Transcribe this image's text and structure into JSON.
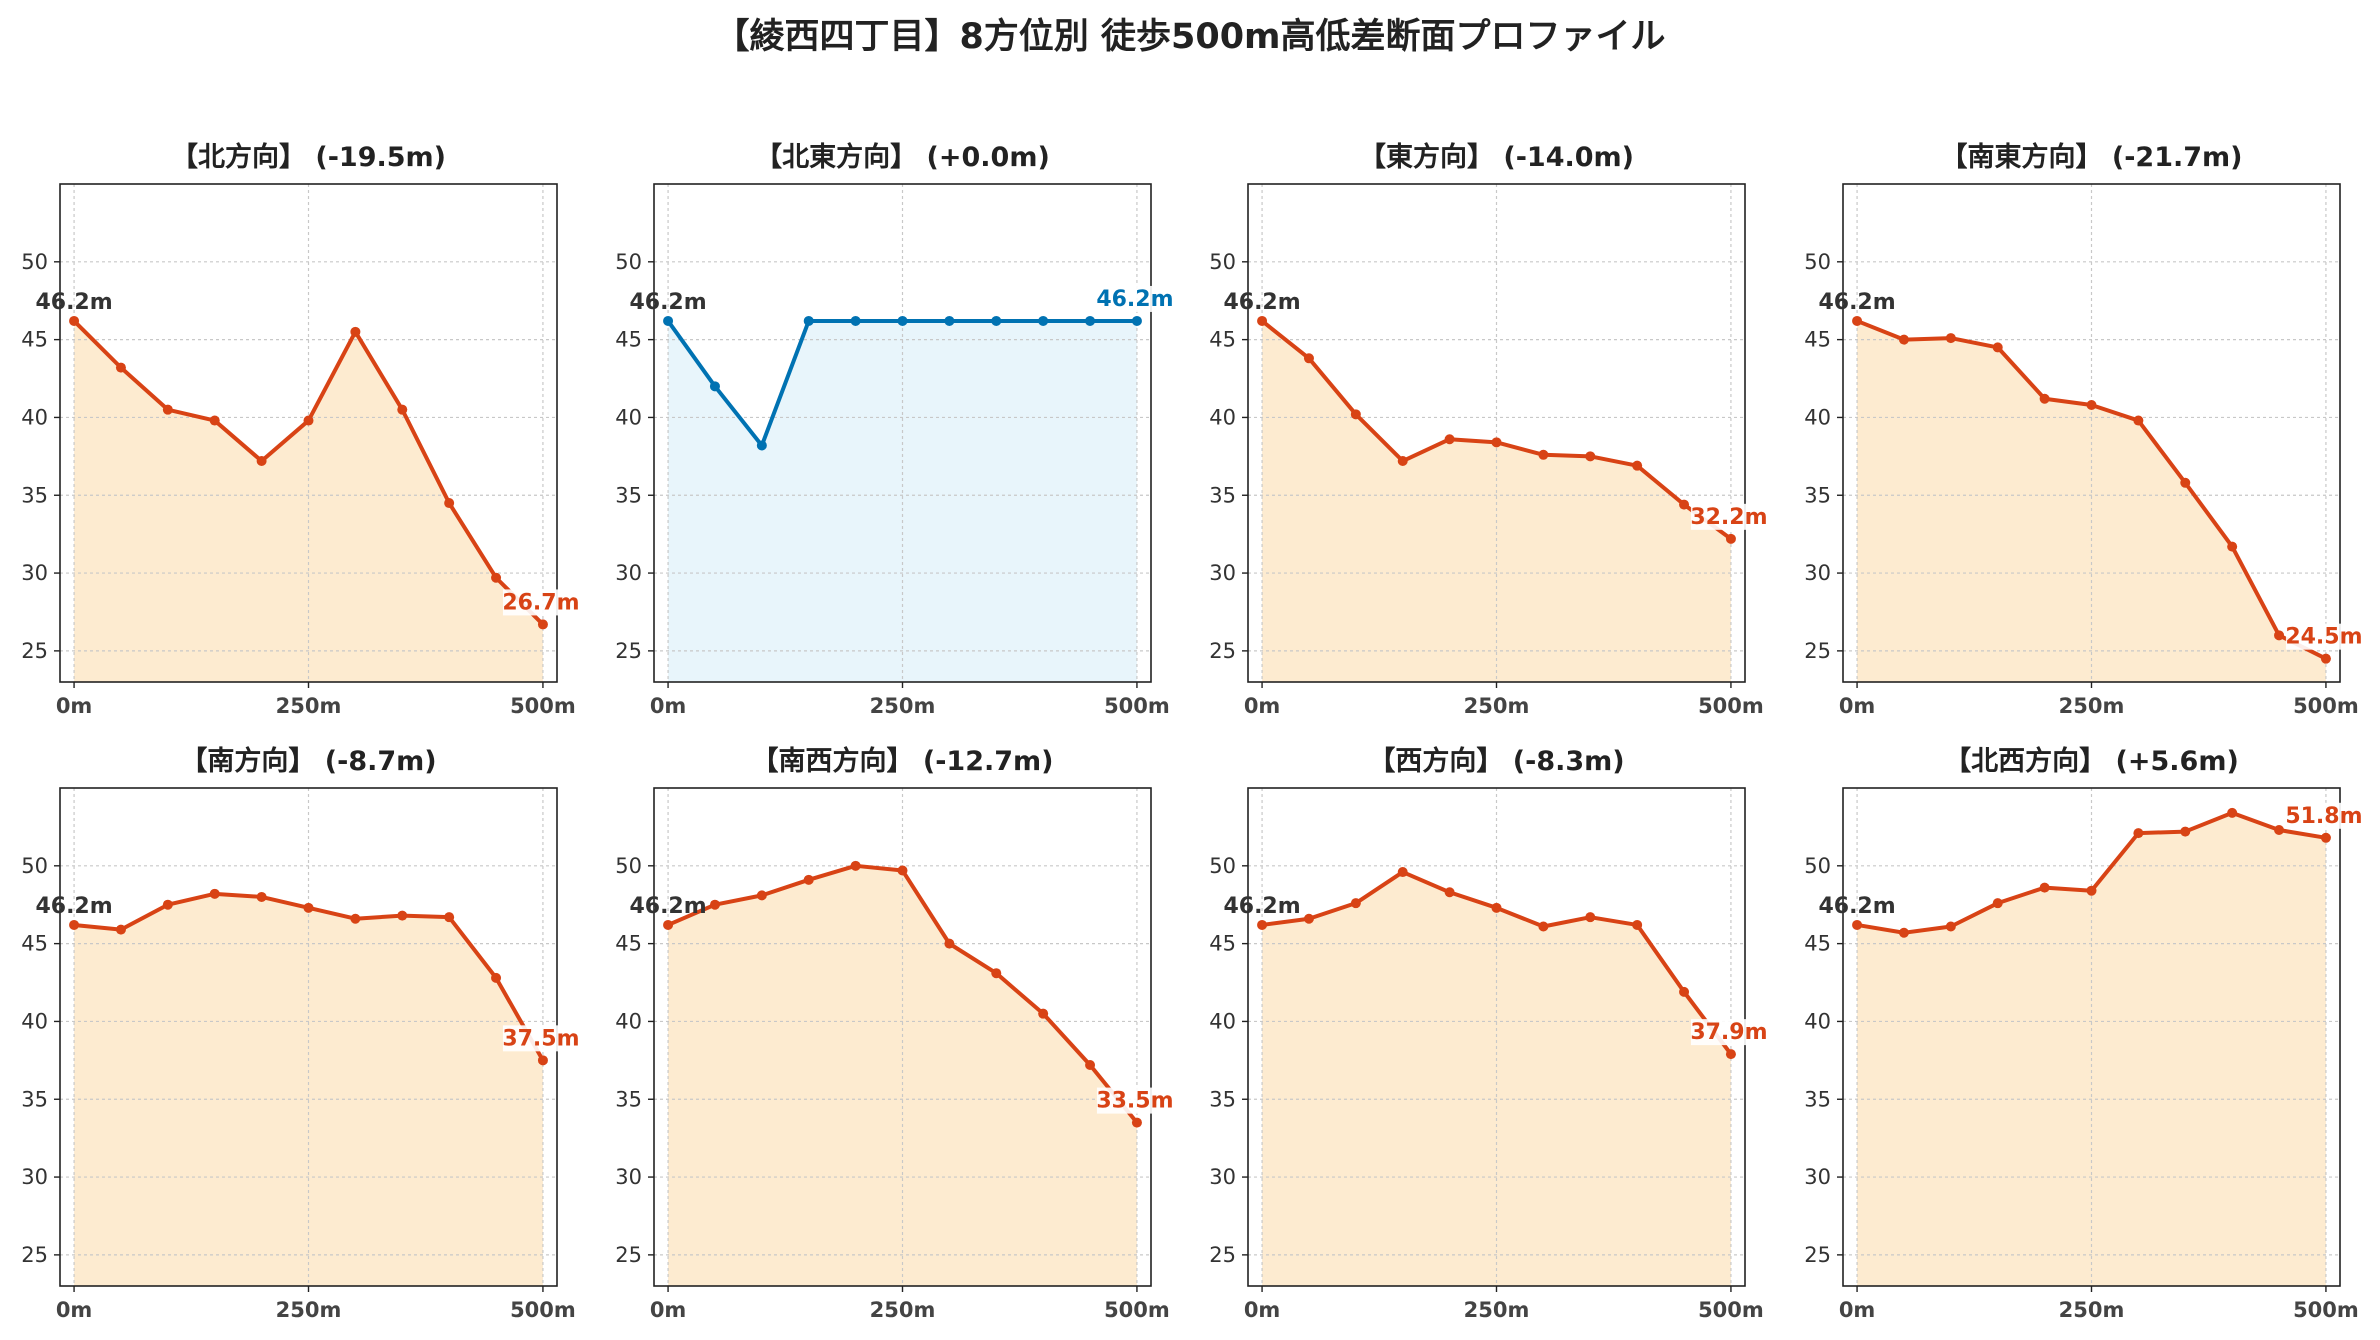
{
  "figure": {
    "title": "【綾西四丁目】8方位別 徒歩500m高低差断面プロファイル",
    "colors": {
      "down_line": "#d84315",
      "down_fill": "#fdebd0",
      "up_line": "#0072b2",
      "up_fill": "#e8f5fb",
      "start_label": "#333333"
    }
  },
  "chart_data": [
    {
      "type": "area",
      "title": "【北方向】 (-19.5m)",
      "x": [
        0,
        50,
        100,
        150,
        200,
        250,
        300,
        350,
        400,
        450,
        500
      ],
      "y": [
        46.2,
        43.2,
        40.5,
        39.8,
        37.2,
        39.8,
        45.5,
        40.5,
        34.5,
        29.7,
        26.7
      ],
      "ylim": [
        23,
        55
      ],
      "yticks": [
        25,
        30,
        35,
        40,
        45,
        50
      ],
      "xticks": [
        0,
        250,
        500
      ],
      "xticklabels": [
        "0m",
        "250m",
        "500m"
      ],
      "grid": true,
      "style": "down",
      "start_label": "46.2m",
      "end_label": "26.7m"
    },
    {
      "type": "area",
      "title": "【北東方向】 (+0.0m)",
      "x": [
        0,
        50,
        100,
        150,
        200,
        250,
        300,
        350,
        400,
        450,
        500
      ],
      "y": [
        46.2,
        42.0,
        38.2,
        46.2,
        46.2,
        46.2,
        46.2,
        46.2,
        46.2,
        46.2,
        46.2
      ],
      "ylim": [
        23,
        55
      ],
      "yticks": [
        25,
        30,
        35,
        40,
        45,
        50
      ],
      "xticks": [
        0,
        250,
        500
      ],
      "xticklabels": [
        "0m",
        "250m",
        "500m"
      ],
      "grid": true,
      "style": "up",
      "start_label": "46.2m",
      "end_label": "46.2m"
    },
    {
      "type": "area",
      "title": "【東方向】 (-14.0m)",
      "x": [
        0,
        50,
        100,
        150,
        200,
        250,
        300,
        350,
        400,
        450,
        500
      ],
      "y": [
        46.2,
        43.8,
        40.2,
        37.2,
        38.6,
        38.4,
        37.6,
        37.5,
        36.9,
        34.4,
        32.2
      ],
      "ylim": [
        23,
        55
      ],
      "yticks": [
        25,
        30,
        35,
        40,
        45,
        50
      ],
      "xticks": [
        0,
        250,
        500
      ],
      "xticklabels": [
        "0m",
        "250m",
        "500m"
      ],
      "grid": true,
      "style": "down",
      "start_label": "46.2m",
      "end_label": "32.2m"
    },
    {
      "type": "area",
      "title": "【南東方向】 (-21.7m)",
      "x": [
        0,
        50,
        100,
        150,
        200,
        250,
        300,
        350,
        400,
        450,
        500
      ],
      "y": [
        46.2,
        45.0,
        45.1,
        44.5,
        41.2,
        40.8,
        39.8,
        35.8,
        31.7,
        26.0,
        24.5
      ],
      "ylim": [
        23,
        55
      ],
      "yticks": [
        25,
        30,
        35,
        40,
        45,
        50
      ],
      "xticks": [
        0,
        250,
        500
      ],
      "xticklabels": [
        "0m",
        "250m",
        "500m"
      ],
      "grid": true,
      "style": "down",
      "start_label": "46.2m",
      "end_label": "24.5m"
    },
    {
      "type": "area",
      "title": "【南方向】 (-8.7m)",
      "x": [
        0,
        50,
        100,
        150,
        200,
        250,
        300,
        350,
        400,
        450,
        500
      ],
      "y": [
        46.2,
        45.9,
        47.5,
        48.2,
        48.0,
        47.3,
        46.6,
        46.8,
        46.7,
        42.8,
        37.5
      ],
      "ylim": [
        23,
        55
      ],
      "yticks": [
        25,
        30,
        35,
        40,
        45,
        50
      ],
      "xticks": [
        0,
        250,
        500
      ],
      "xticklabels": [
        "0m",
        "250m",
        "500m"
      ],
      "grid": true,
      "style": "down",
      "start_label": "46.2m",
      "end_label": "37.5m"
    },
    {
      "type": "area",
      "title": "【南西方向】 (-12.7m)",
      "x": [
        0,
        50,
        100,
        150,
        200,
        250,
        300,
        350,
        400,
        450,
        500
      ],
      "y": [
        46.2,
        47.5,
        48.1,
        49.1,
        50.0,
        49.7,
        45.0,
        43.1,
        40.5,
        37.2,
        33.5
      ],
      "ylim": [
        23,
        55
      ],
      "yticks": [
        25,
        30,
        35,
        40,
        45,
        50
      ],
      "xticks": [
        0,
        250,
        500
      ],
      "xticklabels": [
        "0m",
        "250m",
        "500m"
      ],
      "grid": true,
      "style": "down",
      "start_label": "46.2m",
      "end_label": "33.5m"
    },
    {
      "type": "area",
      "title": "【西方向】 (-8.3m)",
      "x": [
        0,
        50,
        100,
        150,
        200,
        250,
        300,
        350,
        400,
        450,
        500
      ],
      "y": [
        46.2,
        46.6,
        47.6,
        49.6,
        48.3,
        47.3,
        46.1,
        46.7,
        46.2,
        41.9,
        37.9
      ],
      "ylim": [
        23,
        55
      ],
      "yticks": [
        25,
        30,
        35,
        40,
        45,
        50
      ],
      "xticks": [
        0,
        250,
        500
      ],
      "xticklabels": [
        "0m",
        "250m",
        "500m"
      ],
      "grid": true,
      "style": "down",
      "start_label": "46.2m",
      "end_label": "37.9m"
    },
    {
      "type": "area",
      "title": "【北西方向】 (+5.6m)",
      "x": [
        0,
        50,
        100,
        150,
        200,
        250,
        300,
        350,
        400,
        450,
        500
      ],
      "y": [
        46.2,
        45.7,
        46.1,
        47.6,
        48.6,
        48.4,
        52.1,
        52.2,
        53.4,
        52.3,
        51.8
      ],
      "ylim": [
        23,
        55
      ],
      "yticks": [
        25,
        30,
        35,
        40,
        45,
        50
      ],
      "xticks": [
        0,
        250,
        500
      ],
      "xticklabels": [
        "0m",
        "250m",
        "500m"
      ],
      "grid": true,
      "style": "down",
      "start_label": "46.2m",
      "end_label": "51.8m"
    }
  ]
}
